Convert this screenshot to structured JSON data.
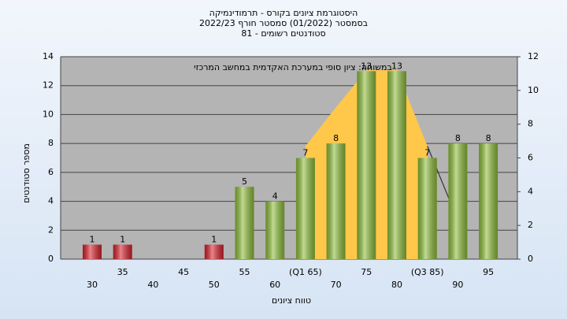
{
  "chart_data": {
    "type": "bar",
    "title": "היסטוגרמת ציונים בקורס - תרמודינמיקה",
    "subtitle": "בסמסטר  (01/2022)  סמסטר חורף 2022/23",
    "subtitle2": "סטודנטים רשומים - 81",
    "annotation": "במשוחה: ציון סופי במערכת האקדמית במחשב המרכזי",
    "y_label": "מספר סטודנטים",
    "x_label": "טווח ציונים",
    "categories": [
      "30",
      "35",
      "40",
      "45",
      "50",
      "55",
      "60",
      "(Q1 65)",
      "70",
      "75",
      "80",
      "(Q3 85)",
      "90",
      "95"
    ],
    "values": [
      1,
      1,
      0,
      0,
      1,
      5,
      4,
      7,
      8,
      13,
      13,
      7,
      8,
      8
    ],
    "value_labels": [
      "1",
      "1",
      null,
      null,
      "1",
      "5",
      "4",
      "7",
      "8",
      "13",
      "13",
      "7",
      "8",
      "8"
    ],
    "colors": [
      "#d9202a",
      "#d9202a",
      "#d9202a",
      "#d9202a",
      "#d9202a",
      "#8fbf3a",
      "#8fbf3a",
      "#8fbf3a",
      "#8fbf3a",
      "#8fbf3a",
      "#8fbf3a",
      "#8fbf3a",
      "#8fbf3a",
      "#8fbf3a"
    ],
    "series": [
      {
        "color": "#ffc84a",
        "style": "area",
        "axis": "y2",
        "values": [
          null,
          null,
          null,
          null,
          null,
          null,
          null,
          6.7,
          9,
          11.2,
          11.2,
          6.7,
          null,
          null
        ]
      },
      {
        "color": "#333333",
        "style": "line",
        "axis": "y2",
        "values": [
          null,
          null,
          null,
          null,
          null,
          null,
          null,
          null,
          null,
          null,
          null,
          6.7,
          2.3,
          null
        ]
      }
    ],
    "ylim": [
      0,
      14
    ],
    "yticks": [
      0,
      2,
      4,
      6,
      8,
      10,
      12,
      14
    ],
    "y2lim": [
      0,
      12
    ],
    "y2ticks": [
      0,
      2,
      4,
      6,
      8,
      10,
      12
    ],
    "grid": true
  }
}
